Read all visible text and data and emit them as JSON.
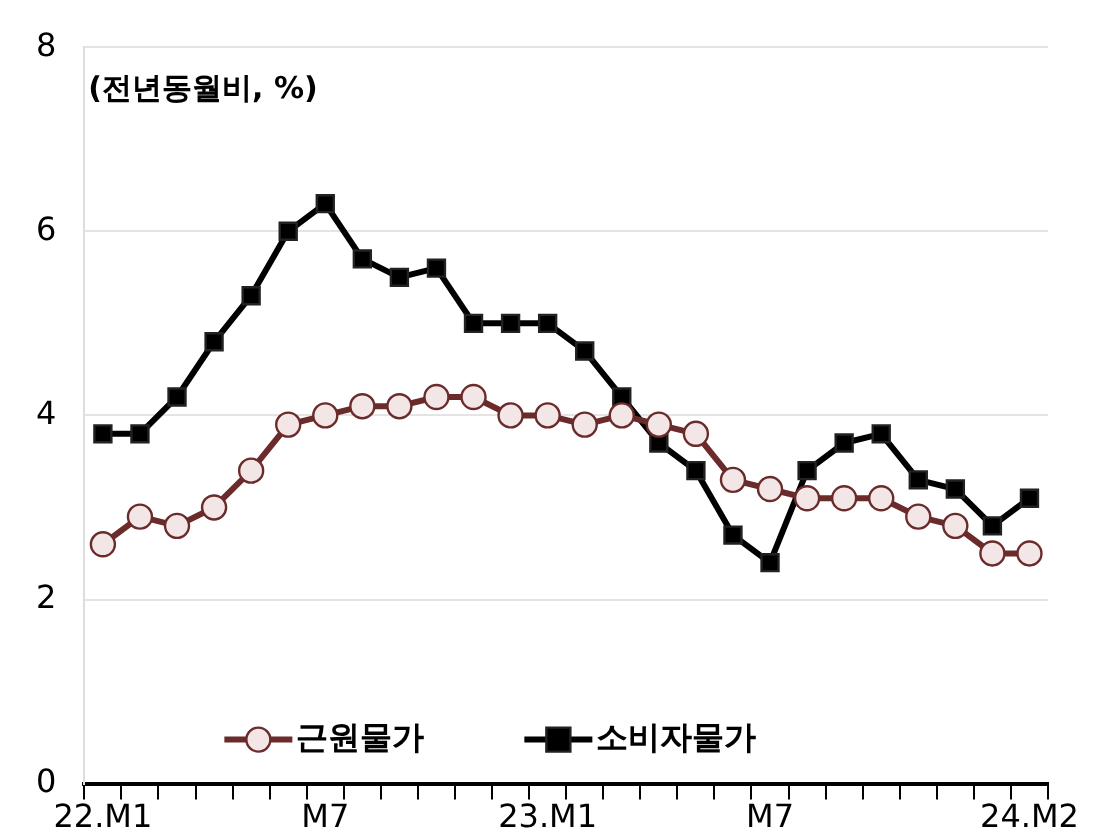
{
  "chart_data": {
    "type": "line",
    "annotations": [
      "(전년동월비, %)"
    ],
    "categories": [
      "22.M1",
      null,
      null,
      null,
      null,
      null,
      "M7",
      null,
      null,
      null,
      null,
      null,
      "23.M1",
      null,
      null,
      null,
      null,
      null,
      "M7",
      null,
      null,
      null,
      null,
      null,
      null,
      "24.M2"
    ],
    "series": [
      {
        "name": "근원물가",
        "color": "#6b2b2b",
        "marker": "circle",
        "values": [
          2.6,
          2.9,
          2.8,
          3.0,
          3.4,
          3.9,
          4.0,
          4.1,
          4.1,
          4.2,
          4.2,
          4.0,
          4.0,
          3.9,
          4.0,
          3.9,
          3.8,
          3.3,
          3.2,
          3.1,
          3.1,
          3.1,
          2.9,
          2.8,
          2.5,
          2.5
        ]
      },
      {
        "name": "소비자물가",
        "color": "#000000",
        "marker": "square",
        "values": [
          3.8,
          3.8,
          4.2,
          4.8,
          5.3,
          6.0,
          6.3,
          5.7,
          5.5,
          5.6,
          5.0,
          5.0,
          5.0,
          4.7,
          4.2,
          3.7,
          3.4,
          2.7,
          2.4,
          3.4,
          3.7,
          3.8,
          3.3,
          3.2,
          2.8,
          3.1
        ]
      }
    ],
    "ylim": [
      0,
      8
    ],
    "yticks": [
      0,
      2,
      4,
      6,
      8
    ],
    "grid": "y",
    "legend": "bottom",
    "line_style": "solid"
  }
}
